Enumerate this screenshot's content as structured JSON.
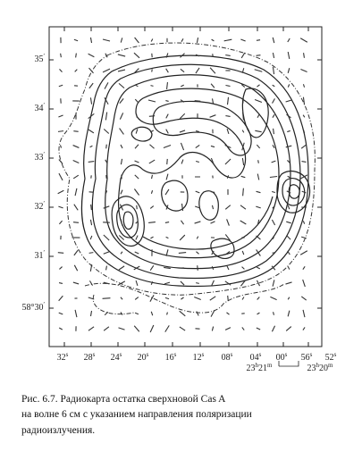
{
  "figure": {
    "yticks": [
      {
        "main": "35",
        "sup": "′"
      },
      {
        "main": "34",
        "sup": "′"
      },
      {
        "main": "33",
        "sup": "′"
      },
      {
        "main": "32",
        "sup": "′"
      },
      {
        "main": "31",
        "sup": "′"
      },
      {
        "main": "58°30",
        "sup": "′"
      }
    ],
    "xticks": [
      {
        "main": "32",
        "sup": "s"
      },
      {
        "main": "28",
        "sup": "s"
      },
      {
        "main": "24",
        "sup": "s"
      },
      {
        "main": "20",
        "sup": "s"
      },
      {
        "main": "16",
        "sup": "s"
      },
      {
        "main": "12",
        "sup": "s"
      },
      {
        "main": "08",
        "sup": "s"
      },
      {
        "main": "04",
        "sup": "s"
      },
      {
        "main": "00",
        "sup": "s"
      },
      {
        "main": "56",
        "sup": "s"
      },
      {
        "main": "52",
        "sup": "s"
      }
    ],
    "ra_labels": [
      {
        "h": "23",
        "hsup": "h",
        "m": "21",
        "msup": "m"
      },
      {
        "h": "23",
        "hsup": "h",
        "m": "20",
        "msup": "m"
      }
    ]
  },
  "caption": {
    "lines": [
      "Рис. 6.7. Радиокарта остатка сверхновой Cas A",
      "на волне 6 см с указанием направления поляризации",
      "радиоизлучения."
    ]
  }
}
